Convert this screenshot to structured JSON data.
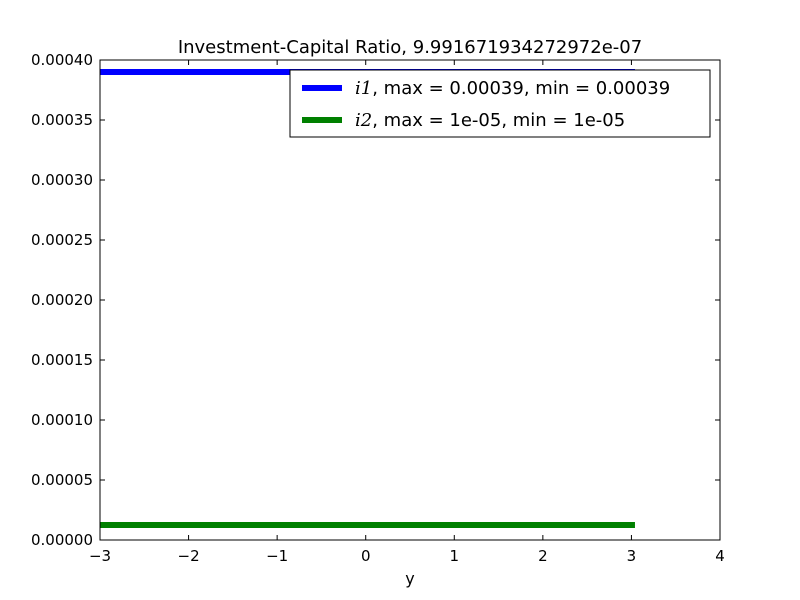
{
  "chart_data": {
    "type": "line",
    "title": "Investment-Capital Ratio, 9.991671934272972e-07",
    "xlabel": "y",
    "ylabel": "",
    "xlim": [
      -3,
      4
    ],
    "ylim": [
      0,
      0.0004
    ],
    "x_ticks": [
      "−3",
      "−2",
      "−1",
      "0",
      "1",
      "2",
      "3",
      "4"
    ],
    "x_tick_values": [
      -3,
      -2,
      -1,
      0,
      1,
      2,
      3,
      4
    ],
    "y_ticks": [
      "0.00000",
      "0.00005",
      "0.00010",
      "0.00015",
      "0.00020",
      "0.00025",
      "0.00030",
      "0.00035",
      "0.00040"
    ],
    "y_tick_values": [
      0,
      5e-05,
      0.0001,
      0.00015,
      0.0002,
      0.00025,
      0.0003,
      0.00035,
      0.0004
    ],
    "grid": false,
    "legend_position": "top-right",
    "series": [
      {
        "legend_symbol": "i1",
        "legend_text": ", max = 0.00039, min = 0.00039",
        "color": "#0000ff",
        "x": [
          -3.0,
          3.04
        ],
        "y": [
          0.00039,
          0.00039
        ]
      },
      {
        "legend_symbol": "i2",
        "legend_text": ", max = 1e-05, min = 1e-05",
        "color": "#008000",
        "x": [
          -3.0,
          3.04
        ],
        "y": [
          1.25e-05,
          1.25e-05
        ]
      }
    ]
  }
}
